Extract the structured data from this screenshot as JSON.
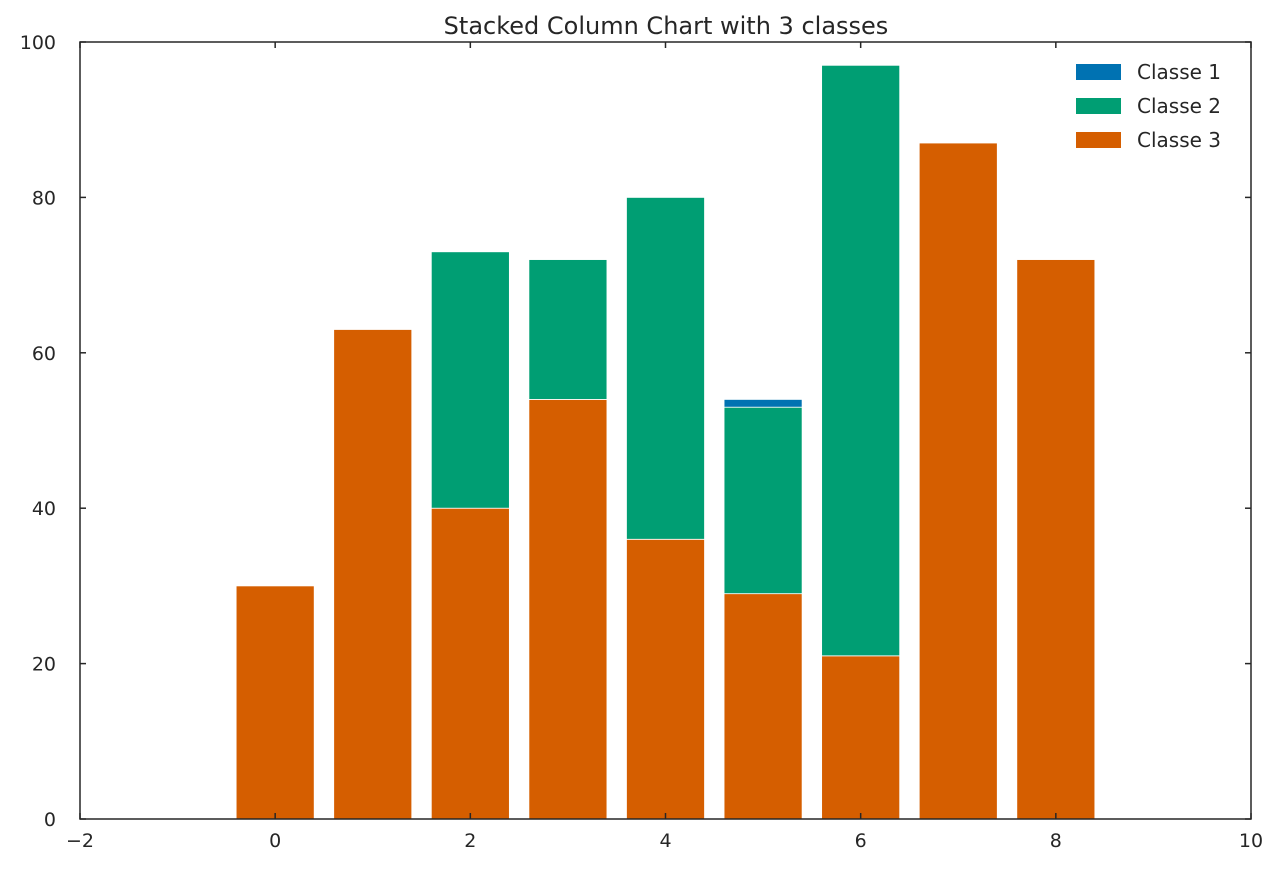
{
  "chart_data": {
    "type": "bar",
    "stacked": true,
    "title": "Stacked Column Chart with 3 classes",
    "xlabel": "",
    "ylabel": "",
    "xlim": [
      -2,
      10
    ],
    "ylim": [
      0,
      100
    ],
    "x_ticks": [
      -2,
      0,
      2,
      4,
      6,
      8,
      10
    ],
    "x_tick_labels": [
      "−2",
      "0",
      "2",
      "4",
      "6",
      "8",
      "10"
    ],
    "y_ticks": [
      0,
      20,
      40,
      60,
      80,
      100
    ],
    "y_tick_labels": [
      "0",
      "20",
      "40",
      "60",
      "80",
      "100"
    ],
    "x": [
      0,
      1,
      2,
      3,
      4,
      5,
      6,
      7,
      8
    ],
    "bar_width": 0.8,
    "series": [
      {
        "name": "Classe 3",
        "color": "#d55e00",
        "values": [
          30,
          63,
          40,
          54,
          36,
          29,
          21,
          87,
          72
        ]
      },
      {
        "name": "Classe 2",
        "color": "#009e73",
        "values": [
          0,
          0,
          33,
          18,
          44,
          24,
          76,
          0,
          0
        ]
      },
      {
        "name": "Classe 1",
        "color": "#0072b2",
        "values": [
          0,
          0,
          0,
          0,
          0,
          1,
          0,
          0,
          0
        ]
      }
    ],
    "legend": {
      "position": "top-right",
      "entries": [
        {
          "label": "Classe 1",
          "color": "#0072b2"
        },
        {
          "label": "Classe 2",
          "color": "#009e73"
        },
        {
          "label": "Classe 3",
          "color": "#d55e00"
        }
      ]
    },
    "grid": false
  }
}
